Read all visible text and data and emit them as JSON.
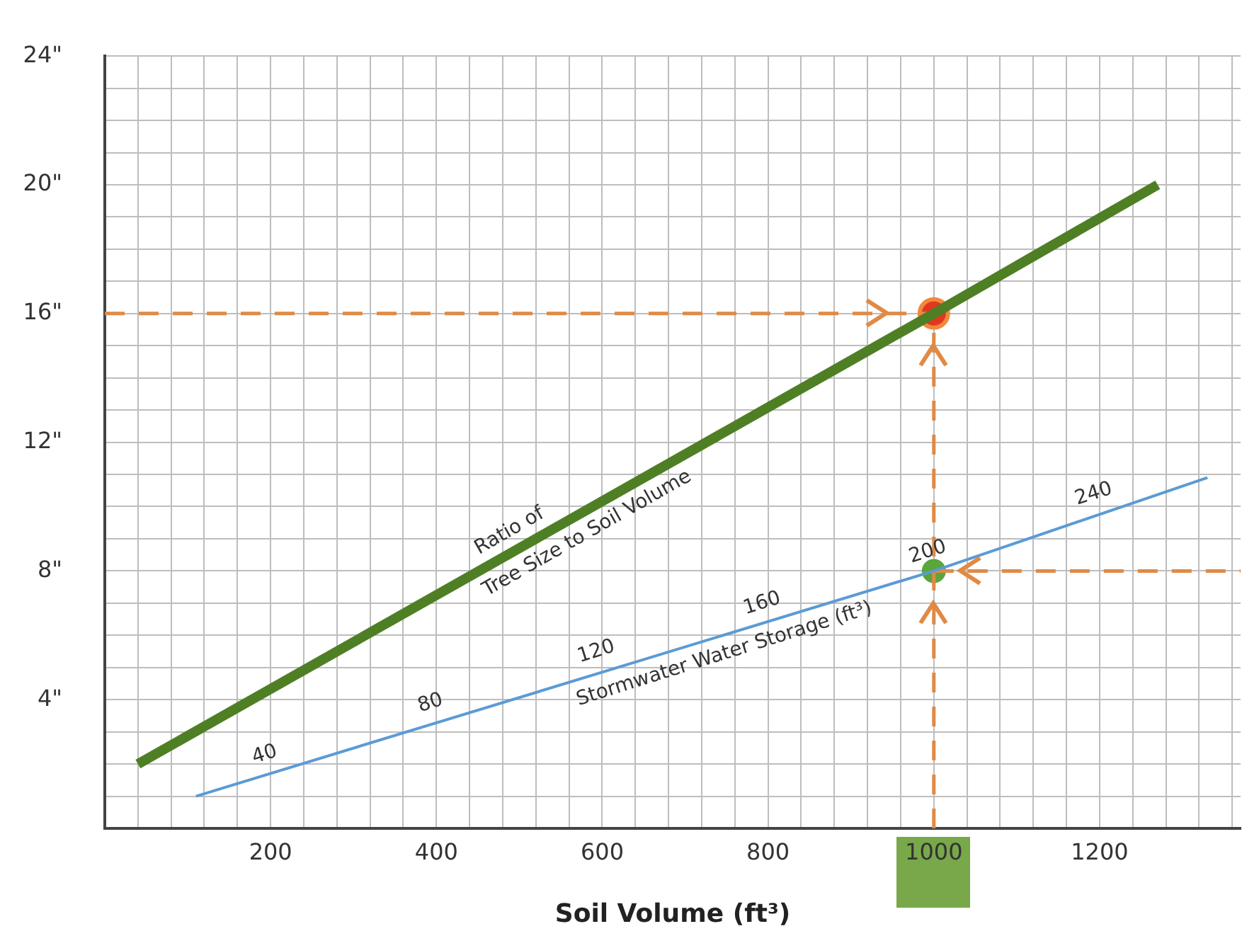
{
  "chart_data": {
    "type": "line",
    "xlabel": "Soil Volume (ft³)",
    "xlim": [
      0,
      1370
    ],
    "xticks": [
      {
        "value": 0,
        "label": null
      },
      {
        "value": 40,
        "label": null
      },
      {
        "value": 80,
        "label": null
      },
      {
        "value": 120,
        "label": null
      },
      {
        "value": 160,
        "label": null
      },
      200,
      {
        "value": 240,
        "label": null
      },
      {
        "value": 280,
        "label": null
      },
      {
        "value": 320,
        "label": null
      },
      {
        "value": 360,
        "label": null
      },
      400,
      {
        "value": 440,
        "label": null
      },
      {
        "value": 480,
        "label": null
      },
      {
        "value": 520,
        "label": null
      },
      {
        "value": 560,
        "label": null
      },
      600,
      {
        "value": 640,
        "label": null
      },
      {
        "value": 680,
        "label": null
      },
      {
        "value": 720,
        "label": null
      },
      {
        "value": 760,
        "label": null
      },
      800,
      {
        "value": 840,
        "label": null
      },
      {
        "value": 880,
        "label": null
      },
      {
        "value": 920,
        "label": null
      },
      {
        "value": 960,
        "label": null
      },
      1000,
      {
        "value": 1040,
        "label": null
      },
      {
        "value": 1080,
        "label": null
      },
      {
        "value": 1120,
        "label": null
      },
      {
        "value": 1160,
        "label": null
      },
      1200,
      {
        "value": 1240,
        "label": null
      },
      {
        "value": 1280,
        "label": null
      },
      {
        "value": 1320,
        "label": null
      },
      {
        "value": 1360,
        "label": null
      }
    ],
    "ylim": [
      0,
      24
    ],
    "yticks": [
      {
        "value": 0,
        "label": null
      },
      {
        "value": 1,
        "label": null
      },
      {
        "value": 2,
        "label": null
      },
      {
        "value": 3,
        "label": null
      },
      {
        "value": 4,
        "label": "4\""
      },
      {
        "value": 5,
        "label": null
      },
      {
        "value": 6,
        "label": null
      },
      {
        "value": 7,
        "label": null
      },
      {
        "value": 8,
        "label": "8\""
      },
      {
        "value": 9,
        "label": null
      },
      {
        "value": 10,
        "label": null
      },
      {
        "value": 11,
        "label": null
      },
      {
        "value": 12,
        "label": "12\""
      },
      {
        "value": 13,
        "label": null
      },
      {
        "value": 14,
        "label": null
      },
      {
        "value": 15,
        "label": null
      },
      {
        "value": 16,
        "label": "16\""
      },
      {
        "value": 17,
        "label": null
      },
      {
        "value": 18,
        "label": null
      },
      {
        "value": 19,
        "label": null
      },
      {
        "value": 20,
        "label": "20\""
      },
      {
        "value": 21,
        "label": null
      },
      {
        "value": 22,
        "label": null
      },
      {
        "value": 23,
        "label": null
      },
      {
        "value": 24,
        "label": "24\""
      }
    ],
    "grid": true,
    "legend": false,
    "marker": "none",
    "line_style": "solid",
    "series": [
      {
        "type": "line",
        "color": "#4f7f24",
        "x": [
          40,
          1000,
          1270
        ],
        "values": [
          2,
          16,
          20
        ]
      },
      {
        "type": "line",
        "color": "#5b9bd5",
        "x": [
          110,
          1000,
          1330
        ],
        "values": [
          1,
          8,
          10.9
        ]
      },
      {
        "type": "line",
        "line_style": "dashed",
        "color": "#e08a45",
        "x": [
          0,
          1000
        ],
        "values": [
          16,
          16
        ]
      },
      {
        "type": "line",
        "line_style": "dashed",
        "color": "#e08a45",
        "x": [
          1000,
          1000
        ],
        "values": [
          0,
          16
        ]
      },
      {
        "type": "line",
        "line_style": "dashed",
        "color": "#e08a45",
        "x": [
          1000,
          1370
        ],
        "values": [
          8,
          8
        ]
      },
      {
        "type": "scatter",
        "marker": "circle",
        "color": "#e2371f",
        "x": [
          1000
        ],
        "values": [
          16
        ]
      },
      {
        "type": "scatter",
        "marker": "circle",
        "color": "#5aa63c",
        "x": [
          1000
        ],
        "values": [
          8
        ]
      }
    ],
    "annotations": [
      {
        "text": "Ratio of",
        "x": 500,
        "y": 8.7
      },
      {
        "text": "Tree Size to Soil Volume",
        "x": 570,
        "y": 9.7
      },
      {
        "text": "Stormwater Water Storage (ft³)",
        "x": 740,
        "y": 6.0
      },
      {
        "text": "40",
        "x": 200,
        "y": 1.7
      },
      {
        "text": "80",
        "x": 400,
        "y": 3.3
      },
      {
        "text": "120",
        "x": 600,
        "y": 4.9
      },
      {
        "text": "160",
        "x": 800,
        "y": 6.4
      },
      {
        "text": "200",
        "x": 1000,
        "y": 8
      },
      {
        "text": "240",
        "x": 1200,
        "y": 9.8
      }
    ]
  }
}
